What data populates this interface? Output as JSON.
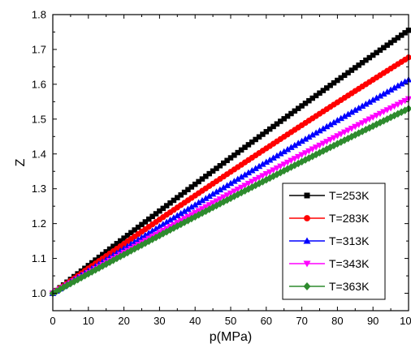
{
  "chart_data": {
    "type": "scatter",
    "xlabel": "p(MPa)",
    "ylabel": "Z",
    "xlim": [
      0,
      100
    ],
    "ylim": [
      0.95,
      1.8
    ],
    "xticks": [
      0,
      10,
      20,
      30,
      40,
      50,
      60,
      70,
      80,
      90,
      100
    ],
    "yticks": [
      1.0,
      1.1,
      1.2,
      1.3,
      1.4,
      1.5,
      1.6,
      1.7,
      1.8
    ],
    "grid": false,
    "legend_position": "bottom-right",
    "x_step": 1,
    "series": [
      {
        "name": "T=253K",
        "color": "#000000",
        "marker": "square",
        "z_at_0": 1.0,
        "z_at_100": 1.755
      },
      {
        "name": "T=283K",
        "color": "#ff0000",
        "marker": "circle",
        "z_at_0": 1.0,
        "z_at_100": 1.677
      },
      {
        "name": "T=313K",
        "color": "#0000ff",
        "marker": "triangle-up",
        "z_at_0": 1.0,
        "z_at_100": 1.613
      },
      {
        "name": "T=343K",
        "color": "#ff00ff",
        "marker": "triangle-down",
        "z_at_0": 1.0,
        "z_at_100": 1.558
      },
      {
        "name": "T=363K",
        "color": "#2e8b2e",
        "marker": "diamond",
        "z_at_0": 1.0,
        "z_at_100": 1.53
      }
    ]
  }
}
